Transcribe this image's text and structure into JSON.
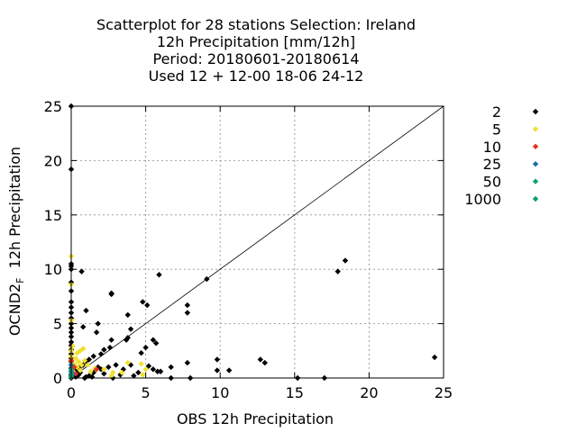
{
  "chart_data": {
    "type": "scatter",
    "title_lines": [
      "Scatterplot for   28 stations Selection: Ireland",
      "12h Precipitation [mm/12h]",
      "Period: 20180601-20180614",
      "Used  12 + 12-00 18-06 24-12"
    ],
    "xlabel": "OBS 12h Precipitation",
    "ylabel_main": "OCND2",
    "ylabel_sub": "F",
    "ylabel_rest": "  12h Precipitation",
    "xlim": [
      0,
      25
    ],
    "ylim": [
      0,
      25
    ],
    "xticks": [
      0,
      5,
      10,
      15,
      20,
      25
    ],
    "yticks": [
      0,
      5,
      10,
      15,
      20,
      25
    ],
    "grid": true,
    "diagonal": true,
    "legend_position": "right",
    "legend": [
      {
        "label": "2",
        "color": "#000000"
      },
      {
        "label": "5",
        "color": "#f0e030"
      },
      {
        "label": "10",
        "color": "#e8301c"
      },
      {
        "label": "25",
        "color": "#1a6fa8"
      },
      {
        "label": "50",
        "color": "#10a070"
      },
      {
        "label": "1000",
        "color": "#10a070"
      }
    ],
    "series": [
      {
        "legend_label": "2",
        "color": "#000000",
        "points": [
          [
            0,
            25
          ],
          [
            0,
            19.2
          ],
          [
            0,
            10.5
          ],
          [
            0,
            10.3
          ],
          [
            0,
            10
          ],
          [
            0,
            8.8
          ],
          [
            0,
            8
          ],
          [
            0,
            7
          ],
          [
            0,
            6.5
          ],
          [
            0,
            6
          ],
          [
            0,
            5.5
          ],
          [
            0,
            5
          ],
          [
            0,
            4.6
          ],
          [
            0,
            4.2
          ],
          [
            0,
            3.8
          ],
          [
            0,
            3.3
          ],
          [
            0,
            3
          ],
          [
            0,
            2.6
          ],
          [
            0,
            2.2
          ],
          [
            0,
            1.8
          ],
          [
            0,
            1.5
          ],
          [
            0,
            1.2
          ],
          [
            0,
            0.9
          ],
          [
            0,
            0.6
          ],
          [
            0,
            0.3
          ],
          [
            0,
            0
          ],
          [
            0.7,
            9.8
          ],
          [
            1,
            6.2
          ],
          [
            0.8,
            4.7
          ],
          [
            1.8,
            5
          ],
          [
            1.7,
            4.2
          ],
          [
            2.7,
            7.7
          ],
          [
            2.7,
            7.8
          ],
          [
            4.8,
            7
          ],
          [
            5.1,
            6.7
          ],
          [
            5.9,
            9.5
          ],
          [
            9.1,
            9.1
          ],
          [
            7.8,
            6.7
          ],
          [
            7.8,
            6
          ],
          [
            3.8,
            5.8
          ],
          [
            4,
            4.5
          ],
          [
            3.8,
            3.7
          ],
          [
            3.7,
            3.5
          ],
          [
            5.5,
            3.5
          ],
          [
            5.7,
            3.2
          ],
          [
            2.7,
            3.5
          ],
          [
            2.6,
            2.8
          ],
          [
            2.2,
            2.6
          ],
          [
            2,
            2.2
          ],
          [
            1.5,
            2
          ],
          [
            1.2,
            1.7
          ],
          [
            1,
            1.5
          ],
          [
            0.8,
            1.2
          ],
          [
            0.6,
            1
          ],
          [
            0.4,
            0.8
          ],
          [
            0.3,
            0.6
          ],
          [
            0.5,
            0.3
          ],
          [
            0.3,
            0.1
          ],
          [
            1.2,
            0.2
          ],
          [
            1.5,
            0.5
          ],
          [
            2,
            0.8
          ],
          [
            2.5,
            1
          ],
          [
            3,
            1.2
          ],
          [
            3.5,
            0.8
          ],
          [
            4,
            1.2
          ],
          [
            4.5,
            0.5
          ],
          [
            5,
            2.8
          ],
          [
            4.7,
            2.3
          ],
          [
            5.2,
            1.1
          ],
          [
            5.5,
            0.8
          ],
          [
            5.8,
            0.6
          ],
          [
            6,
            0.6
          ],
          [
            6.7,
            1
          ],
          [
            6.7,
            0
          ],
          [
            7.8,
            1.4
          ],
          [
            8,
            0
          ],
          [
            9.8,
            1.7
          ],
          [
            9.8,
            0.7
          ],
          [
            10.6,
            0.7
          ],
          [
            12.7,
            1.7
          ],
          [
            13,
            1.4
          ],
          [
            15.2,
            0
          ],
          [
            17,
            0
          ],
          [
            17.9,
            9.8
          ],
          [
            18.4,
            10.8
          ],
          [
            24.4,
            1.9
          ],
          [
            1.8,
            1
          ],
          [
            2.2,
            0.4
          ],
          [
            3.3,
            0.3
          ],
          [
            4.2,
            0.2
          ],
          [
            1,
            0.1
          ],
          [
            0.6,
            0.5
          ],
          [
            0.9,
            0
          ],
          [
            1.4,
            0.1
          ],
          [
            2.8,
            0
          ]
        ]
      },
      {
        "legend_label": "5",
        "color": "#f0e030",
        "points": [
          [
            0,
            11.2
          ],
          [
            0,
            8.6
          ],
          [
            0,
            5.3
          ],
          [
            0,
            2.5
          ],
          [
            0,
            2
          ],
          [
            0,
            1.6
          ],
          [
            0.2,
            1.3
          ],
          [
            0.4,
            2.3
          ],
          [
            0.6,
            2.5
          ],
          [
            0.8,
            2.7
          ],
          [
            0.5,
            1.5
          ],
          [
            0.3,
            1.8
          ],
          [
            0.7,
            1.2
          ],
          [
            0.9,
            1.6
          ],
          [
            0.4,
            1
          ],
          [
            0.6,
            0.7
          ],
          [
            0.2,
            0.5
          ],
          [
            1.1,
            1.2
          ],
          [
            1.3,
            0.6
          ],
          [
            1.6,
            0.9
          ],
          [
            2.2,
            0.8
          ],
          [
            2.7,
            0.2
          ],
          [
            3.4,
            0.5
          ],
          [
            3.8,
            1.4
          ],
          [
            4.7,
            1.3
          ],
          [
            4.8,
            0.3
          ],
          [
            5,
            0.8
          ],
          [
            2.8,
            0.5
          ],
          [
            0.1,
            2.9
          ]
        ]
      },
      {
        "legend_label": "10",
        "color": "#e8301c",
        "points": [
          [
            0,
            1.6
          ],
          [
            0.2,
            1
          ],
          [
            1.7,
            0.8
          ],
          [
            0.3,
            0.4
          ],
          [
            0.1,
            0.9
          ]
        ]
      },
      {
        "legend_label": "25",
        "color": "#1a6fa8",
        "points": [
          [
            0,
            1.2
          ],
          [
            0,
            0.6
          ],
          [
            0,
            0.2
          ],
          [
            0.1,
            0.4
          ]
        ]
      },
      {
        "legend_label": "50",
        "color": "#10a070",
        "points": [
          [
            0,
            0.8
          ],
          [
            0,
            0.1
          ],
          [
            0,
            0.4
          ]
        ]
      }
    ]
  }
}
